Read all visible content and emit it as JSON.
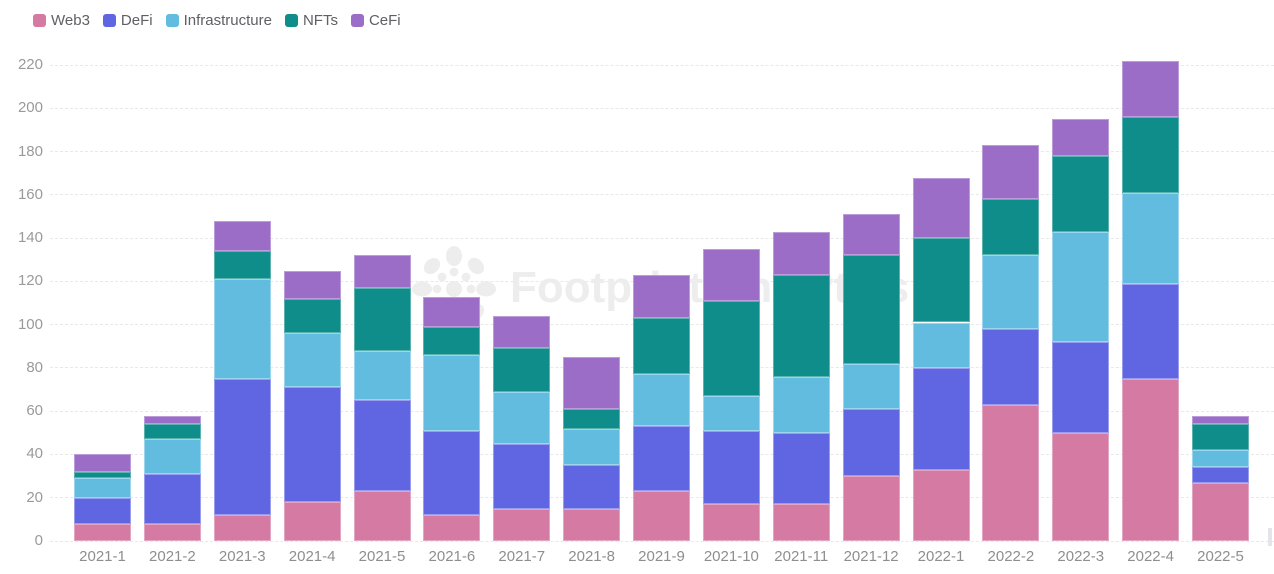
{
  "watermark": {
    "text": "Footprint Analytics"
  },
  "colors": {
    "background": "#ffffff",
    "grid": "#e8e8e8",
    "y_axis_label": "#9a9a9a",
    "x_axis_label": "#8e8e8e",
    "legend_text": "#5f5f64",
    "watermark": "#ededee",
    "scrollbar_fragment": "#e4e4ea"
  },
  "chart_data": {
    "type": "bar",
    "stacked": true,
    "title": "",
    "xlabel": "",
    "ylabel": "",
    "legend_position": "top-left",
    "grid": "dashed-horizontal",
    "ylim": [
      0,
      220
    ],
    "yticks": [
      0,
      20,
      40,
      60,
      80,
      100,
      120,
      140,
      160,
      180,
      200,
      220
    ],
    "categories": [
      "2021-1",
      "2021-2",
      "2021-3",
      "2021-4",
      "2021-5",
      "2021-6",
      "2021-7",
      "2021-8",
      "2021-9",
      "2021-10",
      "2021-11",
      "2021-12",
      "2022-1",
      "2022-2",
      "2022-3",
      "2022-4",
      "2022-5"
    ],
    "series": [
      {
        "name": "Web3",
        "color": "#d57aa3",
        "border_color": "#e2a6c2",
        "values": [
          8,
          8,
          12,
          18,
          23,
          12,
          15,
          15,
          23,
          17,
          17,
          30,
          33,
          63,
          50,
          75,
          27
        ]
      },
      {
        "name": "DeFi",
        "color": "#6065e2",
        "border_color": "#9a9ded",
        "values": [
          12,
          23,
          63,
          53,
          42,
          39,
          30,
          20,
          30,
          34,
          33,
          31,
          47,
          35,
          42,
          44,
          7
        ]
      },
      {
        "name": "Infrastructure",
        "color": "#62bcdf",
        "border_color": "#9cd5ec",
        "values": [
          9,
          16,
          46,
          25,
          23,
          35,
          24,
          17,
          24,
          16,
          26,
          21,
          21,
          34,
          51,
          42,
          8
        ]
      },
      {
        "name": "NFTs",
        "color": "#0f8d8a",
        "border_color": "#5bb2af",
        "values": [
          3,
          7,
          13,
          16,
          29,
          13,
          20,
          9,
          26,
          44,
          47,
          50,
          39,
          26,
          35,
          35,
          12
        ]
      },
      {
        "name": "CeFi",
        "color": "#9b6dc6",
        "border_color": "#bd9cdb",
        "values": [
          8,
          4,
          14,
          13,
          15,
          14,
          15,
          24,
          20,
          24,
          20,
          19,
          28,
          25,
          17,
          26,
          4
        ]
      }
    ],
    "totals": [
      40,
      58,
      148,
      125,
      132,
      113,
      104,
      85,
      123,
      135,
      143,
      151,
      168,
      183,
      195,
      222,
      58
    ]
  }
}
